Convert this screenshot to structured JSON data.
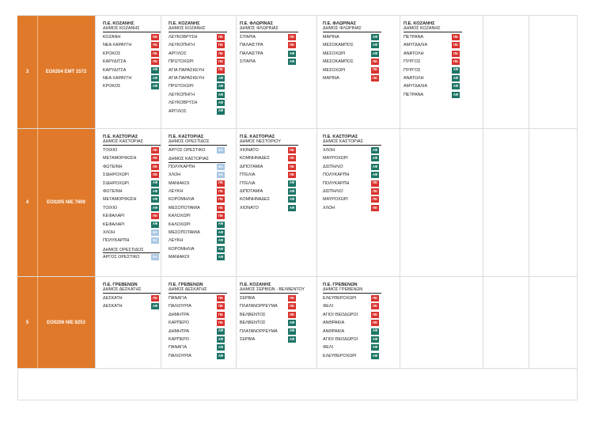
{
  "colors": {
    "orange": "#e07a2a",
    "pe": "#d9332e",
    "af": "#1c7566",
    "el": "#a9c6e4"
  },
  "badges": {
    "pe": "ΠΕ",
    "af": "ΑΦ",
    "el": "ΕΛ"
  },
  "rows": [
    {
      "num": "3",
      "code": "ΕΟ0204 ΕΜΤ 1572",
      "blocks": [
        {
          "pe": "Π.Ε. ΚΟΖΑΝΗΣ",
          "dimos": "ΔΗΜΟΣ ΚΟΖΑΝΗΣ",
          "items": [
            {
              "name": "ΚΟΖΑΝΗ",
              "badge": "pe"
            },
            {
              "name": "ΝΕΑ ΧΑΡΑΥΓΗ",
              "badge": "pe"
            },
            {
              "name": "ΚΡΟΚΟΣ",
              "badge": "pe"
            },
            {
              "name": "ΚΑΡΥΔΙΤΣΑ",
              "badge": "pe"
            },
            {
              "name": "ΚΑΡΥΔΙΤΣΑ",
              "badge": "af"
            },
            {
              "name": "ΝΕΑ ΧΑΡΑΥΓΗ",
              "badge": "af"
            },
            {
              "name": "ΚΡΟΚΟΣ",
              "badge": "af"
            }
          ]
        },
        {
          "pe": "Π.Ε. ΚΟΖΑΝΗΣ",
          "dimos": "ΔΗΜΟΣ ΚΟΖΑΝΗΣ",
          "items": [
            {
              "name": "ΛΕΥΚΟΒΡΥΣΗ",
              "badge": "pe"
            },
            {
              "name": "ΛΕΥΚΟΠΗΓΗ",
              "badge": "pe"
            },
            {
              "name": "ΑΡΓΙΛΟΣ",
              "badge": "pe"
            },
            {
              "name": "ΠΡΩΤΟΧΩΡΙ",
              "badge": "pe"
            },
            {
              "name": "ΑΓΙΑ ΠΑΡΑΣΚΕΥΗ",
              "badge": "pe"
            },
            {
              "name": "ΑΓΙΑ ΠΑΡΑΣΚΕΥΗ",
              "badge": "af"
            },
            {
              "name": "ΠΡΩΤΟΧΩΡΙ",
              "badge": "af"
            },
            {
              "name": "ΛΕΥΚΟΠΗΓΗ",
              "badge": "af"
            },
            {
              "name": "ΛΕΥΚΟΒΡΥΣΗ",
              "badge": "af"
            },
            {
              "name": "ΑΡΓΙΛΟΣ",
              "badge": "af"
            }
          ]
        },
        {
          "pe": "Π.Ε. ΦΛΩΡΙΝΑΣ",
          "dimos": "ΔΗΜΟΣ ΦΛΩΡΙΝΑΣ",
          "items": [
            {
              "name": "ΣΙΤΑΡΙΑ",
              "badge": "pe"
            },
            {
              "name": "ΠΑΛΑΙΣΤΡΑ",
              "badge": "pe"
            },
            {
              "name": "ΠΑΛΑΙΣΤΡΑ",
              "badge": "af"
            },
            {
              "name": "ΣΙΤΑΡΙΑ",
              "badge": "af"
            }
          ]
        },
        {
          "pe": "Π.Ε. ΦΛΩΡΙΝΑΣ",
          "dimos": "ΔΗΜΟΣ ΦΛΩΡΙΝΑΣ",
          "items": [
            {
              "name": "ΜΑΡΙΝΑ",
              "badge": "af"
            },
            {
              "name": "ΜΕΣΟΚΑΜΠΟΣ",
              "badge": "af"
            },
            {
              "name": "ΜΕΣΟΧΩΡΙ",
              "badge": "af"
            },
            {
              "name": "ΜΕΣΟΚΑΜΠΟΣ",
              "badge": "pe"
            },
            {
              "name": "ΜΕΣΟΧΩΡΙ",
              "badge": "pe"
            },
            {
              "name": "ΜΑΡΙΝΑ",
              "badge": "pe"
            }
          ]
        },
        {
          "pe": "Π.Ε. ΚΟΖΑΝΗΣ",
          "dimos": "ΔΗΜΟΣ ΚΟΖΑΝΗΣ",
          "items": [
            {
              "name": "ΠΕΤΡΑΝΑ",
              "badge": "pe"
            },
            {
              "name": "ΑΜΥΓΔΑΛΙΑ",
              "badge": "pe"
            },
            {
              "name": "ΑΝΑΤΟΛΗ",
              "badge": "pe"
            },
            {
              "name": "ΠΥΡΓΟΣ",
              "badge": "pe"
            },
            {
              "name": "ΠΥΡΓΟΣ",
              "badge": "af"
            },
            {
              "name": "ΑΝΑΤΟΛΗ",
              "badge": "af"
            },
            {
              "name": "ΑΜΥΓΔΑΛΙΑ",
              "badge": "af"
            },
            {
              "name": "ΠΕΤΡΑΝΑ",
              "badge": "af"
            }
          ]
        }
      ]
    },
    {
      "num": "4",
      "code": "ΕΟ0205 ΝΙΕ 7609",
      "blocks": [
        {
          "pe": "Π.Ε. ΚΑΣΤΟΡΙΑΣ",
          "dimos": "ΔΗΜΟΣ ΚΑΣΤΟΡΙΑΣ",
          "items": [
            {
              "name": "ΤΟΙΧΙΟ",
              "badge": "pe"
            },
            {
              "name": "ΜΕΤΑΜΟΡΦΩΣΗ",
              "badge": "pe"
            },
            {
              "name": "ΦΩΤΕΙΝΗ",
              "badge": "pe"
            },
            {
              "name": "ΣΙΔΗΡΟΧΩΡΙ",
              "badge": "pe"
            },
            {
              "name": "ΣΙΔΗΡΟΧΩΡΙ",
              "badge": "af"
            },
            {
              "name": "ΦΩΤΕΙΝΗ",
              "badge": "af"
            },
            {
              "name": "ΜΕΤΑΜΟΡΦΩΣΗ",
              "badge": "af"
            },
            {
              "name": "ΤΟΙΧΙΟ",
              "badge": "af"
            },
            {
              "name": "ΚΕΦΑΛΑΡΙ",
              "badge": "pe"
            },
            {
              "name": "ΚΕΦΑΛΑΡΙ",
              "badge": "af"
            },
            {
              "name": "ΧΛΟΗ",
              "badge": "el"
            },
            {
              "name": "ΠΟΛΥΚΑΡΠΗ",
              "badge": "el"
            },
            {
              "sub": "ΔΗΜΟΣ ΟΡΕΣΤΙΔΟΣ"
            },
            {
              "name": "ΑΡΓΟΣ ΟΡΕΣΤΙΚΟ",
              "badge": "el"
            }
          ]
        },
        {
          "pe": "Π.Ε. ΚΑΣΤΟΡΙΑΣ",
          "dimos": "ΔΗΜΟΣ ΟΡΕΣΤΙΔΟΣ",
          "items": [
            {
              "name": "ΑΡΓΟΣ ΟΡΕΣΤΙΚΟ",
              "badge": "el"
            },
            {
              "sub": "ΔΗΜΟΣ ΚΑΣΤΟΡΙΑΣ"
            },
            {
              "name": "ΠΟΛΥΚΑΡΠΗ",
              "badge": "el"
            },
            {
              "name": "ΧΛΟΗ",
              "badge": "el"
            },
            {
              "name": "ΜΑΝΙΑΚΟΙ",
              "badge": "pe"
            },
            {
              "name": "ΛΕΥΚΗ",
              "badge": "pe"
            },
            {
              "name": "ΚΟΡΟΜΗΛΙΑ",
              "badge": "pe"
            },
            {
              "name": "ΜΕΣΟΠΟΤΑΜΙΑ",
              "badge": "pe"
            },
            {
              "name": "ΚΑΛΟΧΩΡΙ",
              "badge": "pe"
            },
            {
              "name": "ΚΑΛΟΧΩΡΙ",
              "badge": "af"
            },
            {
              "name": "ΜΕΣΟΠΟΤΑΜΙΑ",
              "badge": "af"
            },
            {
              "name": "ΛΕΥΚΗ",
              "badge": "af"
            },
            {
              "name": "ΚΟΡΟΜΗΛΙΑ",
              "badge": "af"
            },
            {
              "name": "ΜΑΝΙΑΚΟΙ",
              "badge": "af"
            }
          ]
        },
        {
          "pe": "Π.Ε. ΚΑΣΤΟΡΙΑΣ",
          "dimos": "ΔΗΜΟΣ ΝΕΣΤΟΡΙΟΥ",
          "items": [
            {
              "name": "ΧΙΟΝΑΤΟ",
              "badge": "pe"
            },
            {
              "name": "ΚΟΜΝΗΝΑΔΕΣ",
              "badge": "pe"
            },
            {
              "name": "ΔΙΠΟΤΑΜΙΑ",
              "badge": "pe"
            },
            {
              "name": "ΠΤΕΛΙΑ",
              "badge": "pe"
            },
            {
              "name": "ΠΤΕΛΙΑ",
              "badge": "af"
            },
            {
              "name": "ΔΙΠΟΤΑΜΙΑ",
              "badge": "af"
            },
            {
              "name": "ΚΟΜΝΗΝΑΔΕΣ",
              "badge": "af"
            },
            {
              "name": "ΧΙΟΝΑΤΟ",
              "badge": "af"
            }
          ]
        },
        {
          "pe": "Π.Ε. ΚΑΣΤΟΡΙΑΣ",
          "dimos": "ΔΗΜΟΣ ΚΑΣΤΟΡΙΑΣ",
          "items": [
            {
              "name": "ΧΛΟΗ",
              "badge": "af"
            },
            {
              "name": "ΜΑΥΡΟΧΩΡΙ",
              "badge": "af"
            },
            {
              "name": "ΔΙΣΠΗΛΙΟ",
              "badge": "af"
            },
            {
              "name": "ΠΟΛΥΚΑΡΠΗ",
              "badge": "af"
            },
            {
              "name": "ΠΟΛΥΚΑΡΠΗ",
              "badge": "pe"
            },
            {
              "name": "ΔΙΣΠΗΛΙΟ",
              "badge": "pe"
            },
            {
              "name": "ΜΑΥΡΟΧΩΡΙ",
              "badge": "pe"
            },
            {
              "name": "ΧΛΟΗ",
              "badge": "pe"
            }
          ]
        }
      ]
    },
    {
      "num": "5",
      "code": "ΕΟ0206 ΝΙΕ 8253",
      "blocks": [
        {
          "pe": "Π.Ε. ΓΡΕΒΕΝΩΝ",
          "dimos": "ΔΗΜΟΣ ΔΕΣΚΑΤΗΣ",
          "items": [
            {
              "name": "ΔΕΣΚΑΤΗ",
              "badge": "pe"
            },
            {
              "name": "ΔΕΣΚΑΤΗ",
              "badge": "af"
            }
          ]
        },
        {
          "pe": "Π.Ε. ΓΡΕΒΕΝΩΝ",
          "dimos": "ΔΗΜΟΣ ΔΕΣΚΑΤΗΣ",
          "items": [
            {
              "name": "ΠΑΝΑΓΙΑ",
              "badge": "pe"
            },
            {
              "name": "ΠΑΛΙΟΥΡΙΑ",
              "badge": "pe"
            },
            {
              "name": "ΔΗΜΗΤΡΑ",
              "badge": "pe"
            },
            {
              "name": "ΚΑΡΠΕΡΟ",
              "badge": "pe"
            },
            {
              "name": "ΔΗΜΗΤΡΑ",
              "badge": "af"
            },
            {
              "name": "ΚΑΡΠΕΡΟ",
              "badge": "af"
            },
            {
              "name": "ΠΑΝΑΓΙΑ",
              "badge": "af"
            },
            {
              "name": "ΠΑΛΙΟΥΡΙΑ",
              "badge": "af"
            }
          ]
        },
        {
          "pe": "Π.Ε. ΚΟΖΑΝΗΣ",
          "dimos": "ΔΗΜΟΣ ΣΕΡΒΙΩΝ - ΒΕΛΒΕΝΤΟΥ",
          "items": [
            {
              "name": "ΣΕΡΒΙΑ",
              "badge": "pe"
            },
            {
              "name": "ΠΛΑΤΑΝΟΡΡΕΥΜΑ",
              "badge": "pe"
            },
            {
              "name": "ΒΕΛΒΕΝΤΟΣ",
              "badge": "pe"
            },
            {
              "name": "ΒΕΛΒΕΝΤΟΣ",
              "badge": "af"
            },
            {
              "name": "ΠΛΑΤΑΝΟΡΡΕΥΜΑ",
              "badge": "af"
            },
            {
              "name": "ΣΕΡΒΙΑ",
              "badge": "af"
            }
          ]
        },
        {
          "pe": "Π.Ε. ΓΡΕΒΕΝΩΝ",
          "dimos": "ΔΗΜΟΣ ΓΡΕΒΕΝΩΝ",
          "items": [
            {
              "name": "ΕΛΕΥΘΕΡΟΧΩΡΙ",
              "badge": "pe"
            },
            {
              "name": "ΦΕΛΙ",
              "badge": "pe"
            },
            {
              "name": "ΑΓΙΟΙ ΘΕΟΔΩΡΟΙ",
              "badge": "pe"
            },
            {
              "name": "ΑΝΘΡΑΚΙΑ",
              "badge": "pe"
            },
            {
              "name": "ΑΝΘΡΑΚΙΑ",
              "badge": "af"
            },
            {
              "name": "ΑΓΙΟΙ ΘΕΟΔΩΡΟΙ",
              "badge": "af"
            },
            {
              "name": "ΦΕΛΙ",
              "badge": "af"
            },
            {
              "name": "ΕΛΕΥΘΕΡΟΧΩΡΙ",
              "badge": "af"
            }
          ]
        }
      ]
    }
  ]
}
